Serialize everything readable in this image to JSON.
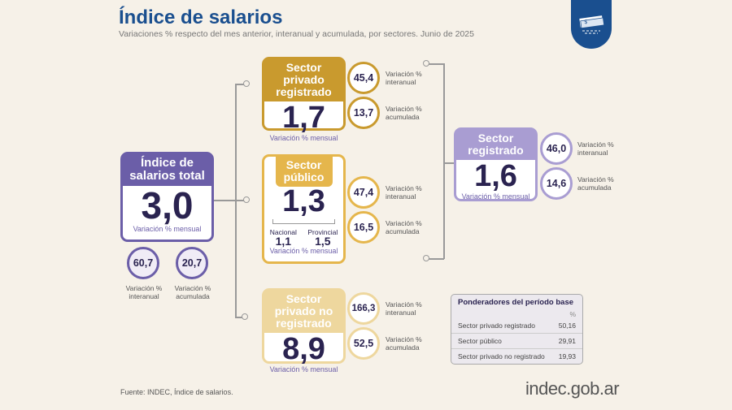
{
  "header": {
    "title": "Índice de salarios",
    "subtitle": "Variaciones % respecto del mes anterior, interanual y acumulada, por sectores. Junio de 2025",
    "icon": "money-stack-icon"
  },
  "colors": {
    "title": "#1a4f8f",
    "total": "#6b5ea8",
    "privado_registrado": "#c99a2e",
    "publico": "#e5b64c",
    "no_registrado": "#eed79e",
    "sector_registrado": "#a99dd2"
  },
  "labels": {
    "mensual": "Variación % mensual",
    "interanual_l1": "Variación %",
    "interanual_l2": "interanual",
    "acumulada_l2": "acumulada"
  },
  "total": {
    "title": "Índice de salarios total",
    "mensual": "3,0",
    "interanual": "60,7",
    "acumulada": "20,7"
  },
  "privado_registrado": {
    "title": "Sector privado registrado",
    "mensual": "1,7",
    "interanual": "45,4",
    "acumulada": "13,7"
  },
  "publico": {
    "title": "Sector público",
    "mensual": "1,3",
    "nacional_label": "Nacional",
    "nacional": "1,1",
    "provincial_label": "Provincial",
    "provincial": "1,5",
    "interanual": "47,4",
    "acumulada": "16,5"
  },
  "no_registrado": {
    "title": "Sector privado no registrado",
    "mensual": "8,9",
    "interanual": "166,3",
    "acumulada": "52,5"
  },
  "sector_registrado": {
    "title": "Sector registrado",
    "mensual": "1,6",
    "interanual": "46,0",
    "acumulada": "14,6"
  },
  "ponderadores": {
    "title": "Ponderadores del período base",
    "unit": "%",
    "rows": [
      {
        "label": "Sector privado registrado",
        "value": "50,16"
      },
      {
        "label": "Sector público",
        "value": "29,91"
      },
      {
        "label": "Sector privado no registrado",
        "value": "19,93"
      }
    ]
  },
  "footer": {
    "source": "Fuente: INDEC, Índice de salarios.",
    "logo": "indec.gob.ar"
  }
}
